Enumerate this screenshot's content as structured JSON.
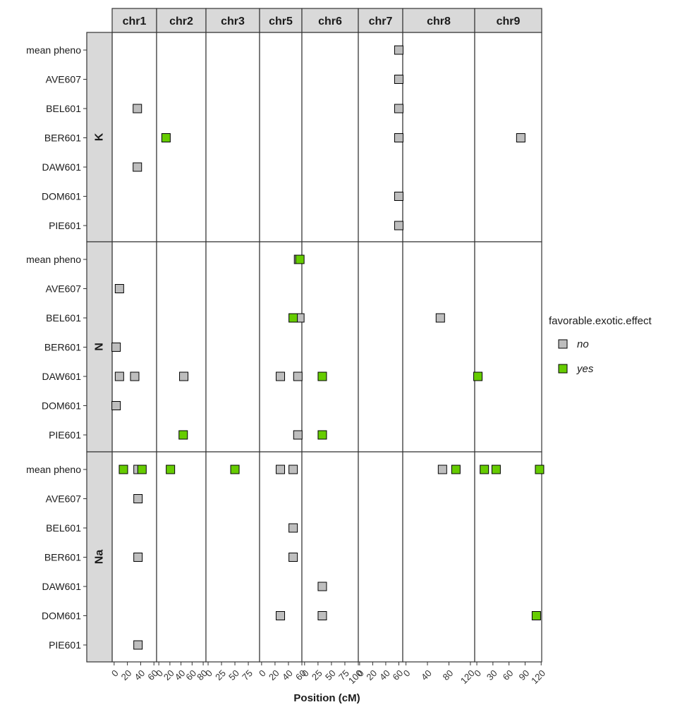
{
  "chart_data": {
    "type": "scatter",
    "xlabel": "Position (cM)",
    "ylabel": "",
    "row_facets": [
      "K",
      "N",
      "Na"
    ],
    "y_categories": [
      "mean pheno",
      "AVE607",
      "BEL601",
      "BER601",
      "DAW601",
      "DOM601",
      "PIE601"
    ],
    "col_facets": [
      {
        "name": "chr1",
        "xlim": [
          -3,
          64
        ],
        "ticks": [
          0,
          20,
          40,
          60
        ],
        "tick_labels": [
          "0",
          "20",
          "40",
          "60"
        ]
      },
      {
        "name": "chr2",
        "xlim": [
          -4,
          85
        ],
        "ticks": [
          0,
          20,
          40,
          60,
          80
        ],
        "tick_labels": [
          "0",
          "20",
          "40",
          "60",
          "80"
        ]
      },
      {
        "name": "chr3",
        "xlim": [
          -4,
          96
        ],
        "ticks": [
          0,
          25,
          50,
          75
        ],
        "tick_labels": [
          "0",
          "25",
          "50",
          "75"
        ]
      },
      {
        "name": "chr5",
        "xlim": [
          -3,
          60
        ],
        "ticks": [
          0,
          20,
          40,
          60
        ],
        "tick_labels": [
          "0",
          "20",
          "40",
          "60"
        ]
      },
      {
        "name": "chr6",
        "xlim": [
          -5,
          100
        ],
        "ticks": [
          0,
          25,
          50,
          75,
          100
        ],
        "tick_labels": [
          "0",
          "25",
          "50",
          "75",
          "100"
        ]
      },
      {
        "name": "chr7",
        "xlim": [
          -2,
          66
        ],
        "ticks": [
          0,
          20,
          40,
          60
        ],
        "tick_labels": [
          "0",
          "20",
          "40",
          "60"
        ]
      },
      {
        "name": "chr8",
        "xlim": [
          -6,
          128
        ],
        "ticks": [
          0,
          40,
          80,
          120
        ],
        "tick_labels": [
          "0",
          "40",
          "80",
          "120"
        ]
      },
      {
        "name": "chr9",
        "xlim": [
          -4,
          121
        ],
        "ticks": [
          0,
          30,
          60,
          90,
          120
        ],
        "tick_labels": [
          "0",
          "30",
          "60",
          "90",
          "120"
        ]
      }
    ],
    "legend": {
      "title": "favorable.exotic.effect",
      "position": "right",
      "entries": [
        {
          "label": "no",
          "color": "#bebebe"
        },
        {
          "label": "yes",
          "color": "#66cc00"
        }
      ]
    },
    "points": [
      {
        "facet_row": "K",
        "chr": "chr7",
        "y": "mean pheno",
        "x": 60,
        "favorable": "no"
      },
      {
        "facet_row": "K",
        "chr": "chr7",
        "y": "AVE607",
        "x": 60,
        "favorable": "no"
      },
      {
        "facet_row": "K",
        "chr": "chr1",
        "y": "BEL601",
        "x": 35,
        "favorable": "no"
      },
      {
        "facet_row": "K",
        "chr": "chr7",
        "y": "BEL601",
        "x": 60,
        "favorable": "no"
      },
      {
        "facet_row": "K",
        "chr": "chr2",
        "y": "BER601",
        "x": 13,
        "favorable": "yes"
      },
      {
        "facet_row": "K",
        "chr": "chr7",
        "y": "BER601",
        "x": 60,
        "favorable": "no"
      },
      {
        "facet_row": "K",
        "chr": "chr9",
        "y": "BER601",
        "x": 82,
        "favorable": "no"
      },
      {
        "facet_row": "K",
        "chr": "chr1",
        "y": "DAW601",
        "x": 35,
        "favorable": "no"
      },
      {
        "facet_row": "K",
        "chr": "chr7",
        "y": "DOM601",
        "x": 60,
        "favorable": "no"
      },
      {
        "facet_row": "K",
        "chr": "chr7",
        "y": "PIE601",
        "x": 60,
        "favorable": "no"
      },
      {
        "facet_row": "N",
        "chr": "chr5",
        "y": "mean pheno",
        "x": 55,
        "favorable": "no"
      },
      {
        "facet_row": "N",
        "chr": "chr5",
        "y": "mean pheno",
        "x": 57,
        "favorable": "yes"
      },
      {
        "facet_row": "N",
        "chr": "chr1",
        "y": "AVE607",
        "x": 8,
        "favorable": "no"
      },
      {
        "facet_row": "N",
        "chr": "chr5",
        "y": "BEL601",
        "x": 57,
        "favorable": "no"
      },
      {
        "facet_row": "N",
        "chr": "chr5",
        "y": "BEL601",
        "x": 47,
        "favorable": "yes"
      },
      {
        "facet_row": "N",
        "chr": "chr8",
        "y": "BEL601",
        "x": 64,
        "favorable": "no"
      },
      {
        "facet_row": "N",
        "chr": "chr1",
        "y": "BER601",
        "x": 3,
        "favorable": "no"
      },
      {
        "facet_row": "N",
        "chr": "chr1",
        "y": "DAW601",
        "x": 8,
        "favorable": "no"
      },
      {
        "facet_row": "N",
        "chr": "chr1",
        "y": "DAW601",
        "x": 31,
        "favorable": "no"
      },
      {
        "facet_row": "N",
        "chr": "chr2",
        "y": "DAW601",
        "x": 45,
        "favorable": "no"
      },
      {
        "facet_row": "N",
        "chr": "chr5",
        "y": "DAW601",
        "x": 28,
        "favorable": "no"
      },
      {
        "facet_row": "N",
        "chr": "chr5",
        "y": "DAW601",
        "x": 54,
        "favorable": "no"
      },
      {
        "facet_row": "N",
        "chr": "chr6",
        "y": "DAW601",
        "x": 33,
        "favorable": "yes"
      },
      {
        "facet_row": "N",
        "chr": "chr9",
        "y": "DAW601",
        "x": 2,
        "favorable": "yes"
      },
      {
        "facet_row": "N",
        "chr": "chr1",
        "y": "DOM601",
        "x": 3,
        "favorable": "no"
      },
      {
        "facet_row": "N",
        "chr": "chr2",
        "y": "PIE601",
        "x": 44,
        "favorable": "yes"
      },
      {
        "facet_row": "N",
        "chr": "chr5",
        "y": "PIE601",
        "x": 54,
        "favorable": "no"
      },
      {
        "facet_row": "N",
        "chr": "chr6",
        "y": "PIE601",
        "x": 33,
        "favorable": "yes"
      },
      {
        "facet_row": "Na",
        "chr": "chr1",
        "y": "mean pheno",
        "x": 14,
        "favorable": "yes"
      },
      {
        "facet_row": "Na",
        "chr": "chr1",
        "y": "mean pheno",
        "x": 36,
        "favorable": "no"
      },
      {
        "facet_row": "Na",
        "chr": "chr1",
        "y": "mean pheno",
        "x": 42,
        "favorable": "yes"
      },
      {
        "facet_row": "Na",
        "chr": "chr2",
        "y": "mean pheno",
        "x": 21,
        "favorable": "yes"
      },
      {
        "facet_row": "Na",
        "chr": "chr3",
        "y": "mean pheno",
        "x": 50,
        "favorable": "yes"
      },
      {
        "facet_row": "Na",
        "chr": "chr5",
        "y": "mean pheno",
        "x": 28,
        "favorable": "no"
      },
      {
        "facet_row": "Na",
        "chr": "chr5",
        "y": "mean pheno",
        "x": 47,
        "favorable": "no"
      },
      {
        "facet_row": "Na",
        "chr": "chr8",
        "y": "mean pheno",
        "x": 68,
        "favorable": "no"
      },
      {
        "facet_row": "Na",
        "chr": "chr8",
        "y": "mean pheno",
        "x": 93,
        "favorable": "yes"
      },
      {
        "facet_row": "Na",
        "chr": "chr9",
        "y": "mean pheno",
        "x": 14,
        "favorable": "yes"
      },
      {
        "facet_row": "Na",
        "chr": "chr9",
        "y": "mean pheno",
        "x": 36,
        "favorable": "yes"
      },
      {
        "facet_row": "Na",
        "chr": "chr9",
        "y": "mean pheno",
        "x": 117,
        "favorable": "yes"
      },
      {
        "facet_row": "Na",
        "chr": "chr1",
        "y": "AVE607",
        "x": 36,
        "favorable": "no"
      },
      {
        "facet_row": "Na",
        "chr": "chr5",
        "y": "BEL601",
        "x": 47,
        "favorable": "no"
      },
      {
        "facet_row": "Na",
        "chr": "chr1",
        "y": "BER601",
        "x": 36,
        "favorable": "no"
      },
      {
        "facet_row": "Na",
        "chr": "chr5",
        "y": "BER601",
        "x": 47,
        "favorable": "no"
      },
      {
        "facet_row": "Na",
        "chr": "chr6",
        "y": "DAW601",
        "x": 33,
        "favorable": "no"
      },
      {
        "facet_row": "Na",
        "chr": "chr5",
        "y": "DOM601",
        "x": 28,
        "favorable": "no"
      },
      {
        "facet_row": "Na",
        "chr": "chr6",
        "y": "DOM601",
        "x": 33,
        "favorable": "no"
      },
      {
        "facet_row": "Na",
        "chr": "chr9",
        "y": "DOM601",
        "x": 111,
        "favorable": "yes"
      },
      {
        "facet_row": "Na",
        "chr": "chr1",
        "y": "PIE601",
        "x": 36,
        "favorable": "no"
      }
    ]
  }
}
